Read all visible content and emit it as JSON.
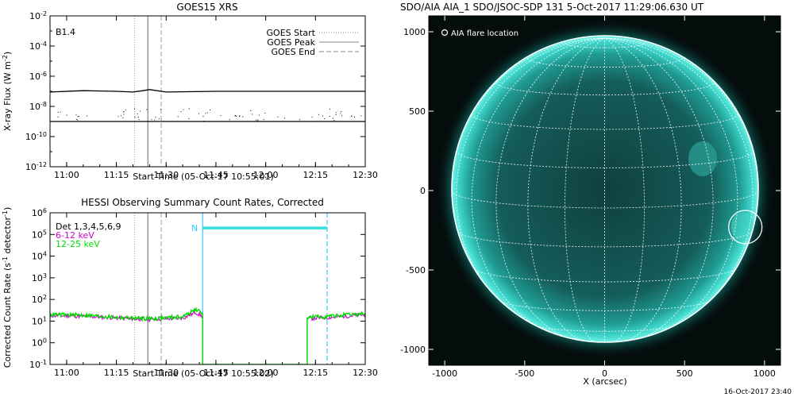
{
  "chart_data": [
    {
      "type": "line",
      "title": "GOES15 XRS",
      "xlabel": "Start Time (05-Oct-17 10:55:01)",
      "ylabel": "X-ray Flux (W m^-2)",
      "ylog": true,
      "ylim": [
        1e-12,
        0.01
      ],
      "y_ticks": [
        "10^-2",
        "10^-4",
        "10^-6",
        "10^-8",
        "10^-10",
        "10^-12"
      ],
      "x_ticks": [
        "11:00",
        "11:15",
        "11:30",
        "11:45",
        "12:00",
        "12:15",
        "12:30"
      ],
      "x_minutes_from_1055": [
        5,
        20,
        35,
        50,
        65,
        80,
        95
      ],
      "annotation": "B1.4",
      "legend": {
        "placement": "top-right",
        "entries": [
          "GOES Start",
          "GOES Peak",
          "GOES End"
        ]
      },
      "events": {
        "start": 25.5,
        "peak": 29.5,
        "end": 33.5
      },
      "series": [
        {
          "x": [
            0,
            10,
            20,
            25,
            28,
            30,
            35,
            50,
            70,
            95
          ],
          "y": [
            9e-08,
            1.1e-07,
            1e-07,
            9e-08,
            1.1e-07,
            1.3e-07,
            9e-08,
            1e-07,
            1e-07,
            1e-07
          ]
        },
        {
          "x": [
            0,
            95
          ],
          "y": [
            1e-09,
            1e-09
          ]
        }
      ]
    },
    {
      "type": "line",
      "title": "HESSI Observing Summary Count Rates, Corrected",
      "xlabel": "Start Time (05-Oct-17 10:55:02)",
      "ylabel": "Corrected Count Rate (s^-1 detector^-1)",
      "ylog": true,
      "ylim": [
        0.1,
        1000000.0
      ],
      "y_ticks": [
        "10^6",
        "10^5",
        "10^4",
        "10^3",
        "10^2",
        "10^1",
        "10^0",
        "10^-1"
      ],
      "x_ticks": [
        "11:00",
        "11:15",
        "11:30",
        "11:45",
        "12:00",
        "12:15",
        "12:30"
      ],
      "x_minutes_from_1055": [
        5,
        20,
        35,
        50,
        65,
        80,
        95
      ],
      "detectors": "Det 1,3,4,5,6,9",
      "events": {
        "start": 25.5,
        "peak": 29.5,
        "end": 33.5
      },
      "night": {
        "label": "N",
        "start": 46,
        "end": 83.5,
        "level": 200000.0
      },
      "series": [
        {
          "name": "6-12 keV",
          "color": "#cc00cc",
          "x": [
            0,
            10,
            20,
            30,
            40,
            44,
            46,
            46,
            77.5,
            77.5,
            85,
            95
          ],
          "y": [
            18,
            17,
            14,
            12,
            14,
            25,
            16,
            0.1,
            0.1,
            13,
            15,
            20
          ]
        },
        {
          "name": "12-25 keV",
          "color": "#00dd00",
          "x": [
            0,
            10,
            20,
            30,
            40,
            44,
            46,
            46,
            77.5,
            77.5,
            85,
            95
          ],
          "y": [
            20,
            19,
            15,
            13,
            16,
            35,
            22,
            0.1,
            0.1,
            15,
            17,
            22
          ]
        }
      ]
    },
    {
      "type": "scatter",
      "title": "SDO/AIA AIA_1 SDO/JSOC-SDP 131",
      "datetime": "5-Oct-2017 11:29:06.630 UT",
      "xlabel": "X (arcsec)",
      "ylabel": "",
      "xlim": [
        -1100,
        1100
      ],
      "ylim": [
        -1100,
        1100
      ],
      "x_ticks": [
        -1000,
        -500,
        0,
        500,
        1000
      ],
      "y_ticks": [
        1000,
        500,
        0,
        -500,
        -1000
      ],
      "solar_radius_arcsec": 960,
      "grid": true,
      "legend_text": "AIA flare location",
      "flare_location": {
        "x": 880,
        "y": -230
      }
    }
  ],
  "footer": {
    "timestamp": "16-Oct-2017 23:40"
  }
}
